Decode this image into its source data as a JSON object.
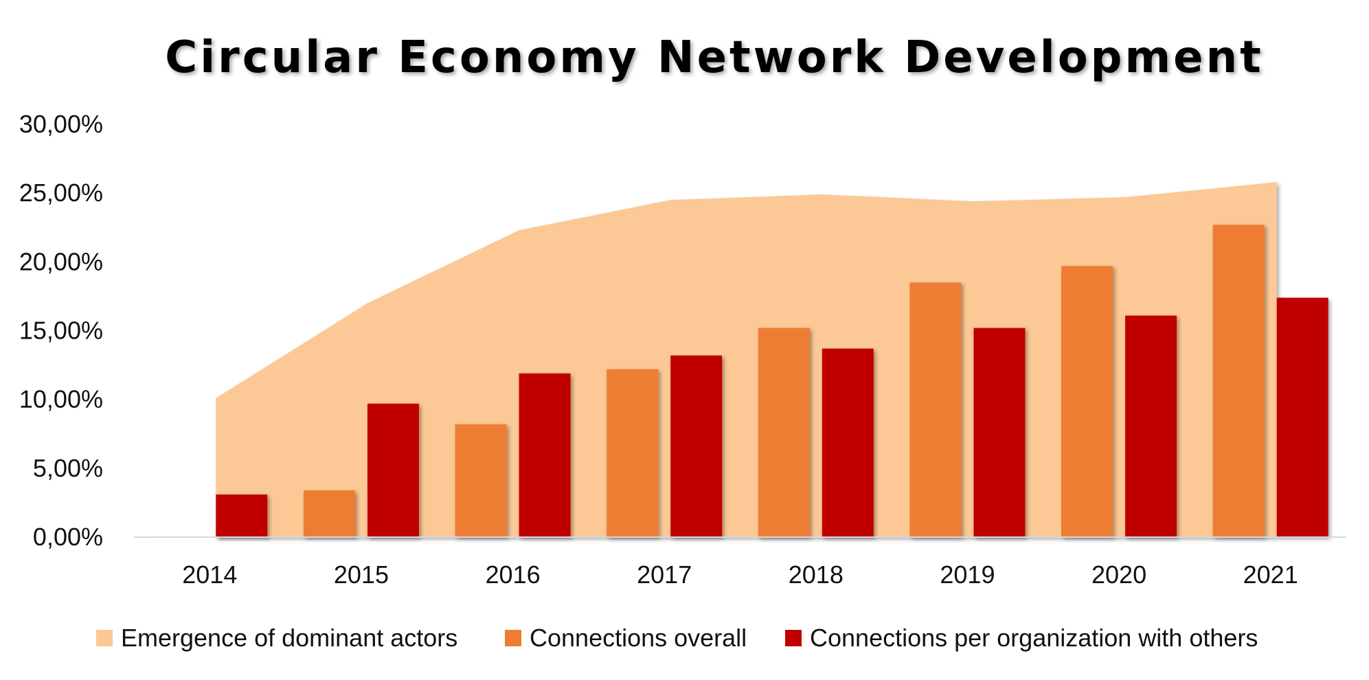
{
  "chart_data": {
    "type": "bar",
    "title": "Circular Economy Network Development",
    "xlabel": "",
    "ylabel": "",
    "categories": [
      "2014",
      "2015",
      "2016",
      "2017",
      "2018",
      "2019",
      "2020",
      "2021"
    ],
    "ylim": [
      0,
      30
    ],
    "yticks": [
      "0,00%",
      "5,00%",
      "10,00%",
      "15,00%",
      "20,00%",
      "25,00%",
      "30,00%"
    ],
    "grid": false,
    "legend_position": "bottom",
    "series": [
      {
        "name": "Emergence of dominant actors",
        "kind": "area",
        "color": "#FCC896",
        "values": [
          10.1,
          17.0,
          22.3,
          24.5,
          24.9,
          24.4,
          24.7,
          25.8
        ]
      },
      {
        "name": "Connections overall",
        "kind": "bar",
        "color": "#ED7D31",
        "values": [
          0.0,
          3.4,
          8.2,
          12.2,
          15.2,
          18.5,
          19.7,
          22.7
        ]
      },
      {
        "name": "Connections per organization with others",
        "kind": "bar",
        "color": "#C00000",
        "values": [
          3.1,
          9.7,
          11.9,
          13.2,
          13.7,
          15.2,
          16.1,
          17.4
        ]
      }
    ]
  }
}
